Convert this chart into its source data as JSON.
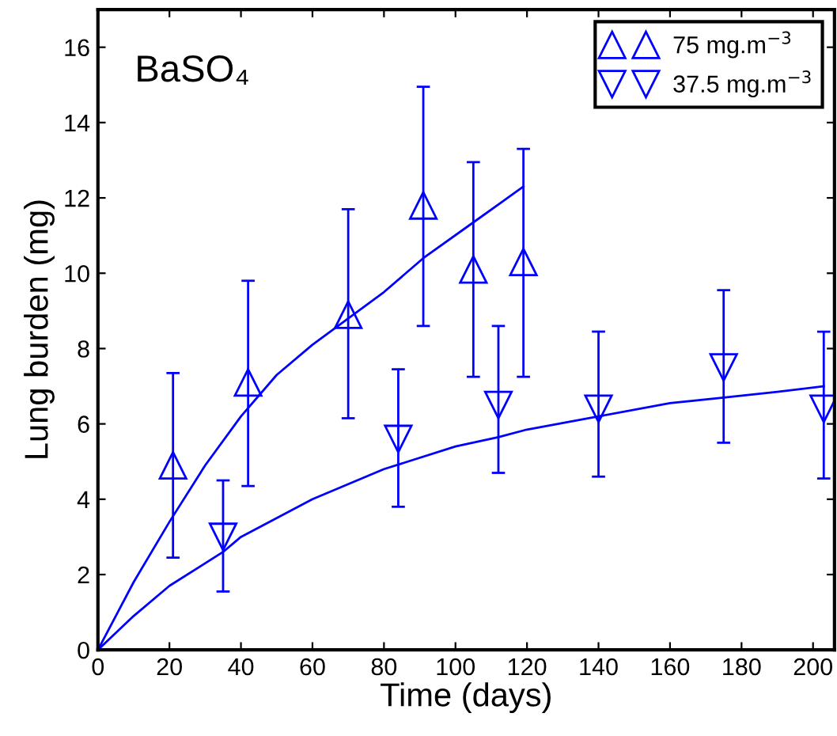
{
  "chart_data": {
    "type": "scatter",
    "xlabel": "Time (days)",
    "ylabel": "Lung burden (mg)",
    "annotations": [
      "BaSO₄"
    ],
    "xlim": [
      0,
      206
    ],
    "ylim": [
      0,
      17
    ],
    "xticks": [
      0,
      20,
      40,
      60,
      80,
      100,
      120,
      140,
      160,
      180,
      200
    ],
    "yticks": [
      0,
      2,
      4,
      6,
      8,
      10,
      12,
      14,
      16
    ],
    "grid": false,
    "legend": "top right",
    "series": [
      {
        "name": "75 mg.m$^{−3}$",
        "marker": "triangle",
        "color": "#0000ff",
        "x": [
          21,
          42,
          70,
          91,
          105,
          119
        ],
        "values": [
          4.9,
          7.1,
          8.9,
          11.8,
          10.1,
          10.3
        ],
        "errors": [
          [
            2.45,
            7.35
          ],
          [
            4.35,
            9.8
          ],
          [
            6.15,
            11.7
          ],
          [
            8.6,
            14.95
          ],
          [
            7.25,
            12.95
          ],
          [
            7.25,
            13.3
          ]
        ]
      },
      {
        "name": "37.5 mg.m$^{−3}$",
        "marker": "triangle_down",
        "color": "#0000ff",
        "x": [
          35,
          84,
          112,
          140,
          175,
          203
        ],
        "values": [
          3.0,
          5.6,
          6.5,
          6.4,
          7.5,
          6.4
        ],
        "errors": [
          [
            1.55,
            4.5
          ],
          [
            3.8,
            7.45
          ],
          [
            4.7,
            8.6
          ],
          [
            4.6,
            8.45
          ],
          [
            5.5,
            9.55
          ],
          [
            4.55,
            8.45
          ]
        ]
      },
      {
        "type": "line",
        "marker": "none",
        "color": "#0000ff",
        "x": [
          0,
          10,
          20,
          30,
          40,
          50,
          60,
          70,
          80,
          91,
          105,
          119
        ],
        "values": [
          0,
          1.8,
          3.4,
          4.9,
          6.2,
          7.3,
          8.1,
          8.8,
          9.5,
          10.4,
          11.35,
          12.3
        ]
      },
      {
        "type": "line",
        "marker": "none",
        "color": "#0000ff",
        "x": [
          0,
          10,
          20,
          35,
          40,
          60,
          80,
          100,
          112,
          120,
          140,
          160,
          175,
          190,
          203
        ],
        "values": [
          0,
          0.9,
          1.7,
          2.6,
          3.0,
          4.0,
          4.8,
          5.4,
          5.65,
          5.85,
          6.2,
          6.55,
          6.7,
          6.85,
          7.0
        ]
      }
    ]
  }
}
